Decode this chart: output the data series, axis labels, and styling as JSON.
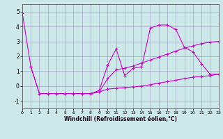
{
  "xlabel": "Windchill (Refroidissement éolien,°C)",
  "xlim": [
    0,
    23
  ],
  "ylim": [
    -1.5,
    5.5
  ],
  "yticks": [
    -1,
    0,
    1,
    2,
    3,
    4,
    5
  ],
  "xticks": [
    0,
    1,
    2,
    3,
    4,
    5,
    6,
    7,
    8,
    9,
    10,
    11,
    12,
    13,
    14,
    15,
    16,
    17,
    18,
    19,
    20,
    21,
    22,
    23
  ],
  "bg_color": "#cce8e8",
  "grid_color": "#9999bb",
  "line_color": "#cc00cc",
  "line1_x": [
    0,
    1,
    2,
    3,
    4,
    5,
    6,
    7,
    8,
    9,
    10,
    11,
    12,
    13,
    14,
    15,
    16,
    17,
    18,
    19,
    20,
    21,
    22,
    23
  ],
  "line1_y": [
    4.9,
    1.3,
    -0.5,
    -0.5,
    -0.5,
    -0.5,
    -0.5,
    -0.5,
    -0.5,
    -0.3,
    1.4,
    2.5,
    0.7,
    1.2,
    1.3,
    3.9,
    4.1,
    4.1,
    3.8,
    2.6,
    2.3,
    1.5,
    0.8,
    0.8
  ],
  "line2_x": [
    1,
    2,
    3,
    4,
    5,
    6,
    7,
    8,
    9,
    10,
    11,
    12,
    13,
    14,
    15,
    16,
    17,
    18,
    19,
    20,
    21,
    22,
    23
  ],
  "line2_y": [
    1.3,
    -0.5,
    -0.5,
    -0.5,
    -0.5,
    -0.5,
    -0.5,
    -0.5,
    -0.4,
    0.5,
    1.1,
    1.2,
    1.35,
    1.55,
    1.75,
    1.95,
    2.15,
    2.35,
    2.55,
    2.7,
    2.85,
    2.95,
    3.0
  ],
  "line3_x": [
    2,
    3,
    4,
    5,
    6,
    7,
    8,
    9,
    10,
    11,
    12,
    13,
    14,
    15,
    16,
    17,
    18,
    19,
    20,
    21,
    22,
    23
  ],
  "line3_y": [
    -0.5,
    -0.5,
    -0.5,
    -0.5,
    -0.5,
    -0.5,
    -0.5,
    -0.4,
    -0.2,
    -0.15,
    -0.1,
    -0.05,
    0.0,
    0.1,
    0.2,
    0.3,
    0.4,
    0.5,
    0.6,
    0.65,
    0.7,
    0.8
  ]
}
